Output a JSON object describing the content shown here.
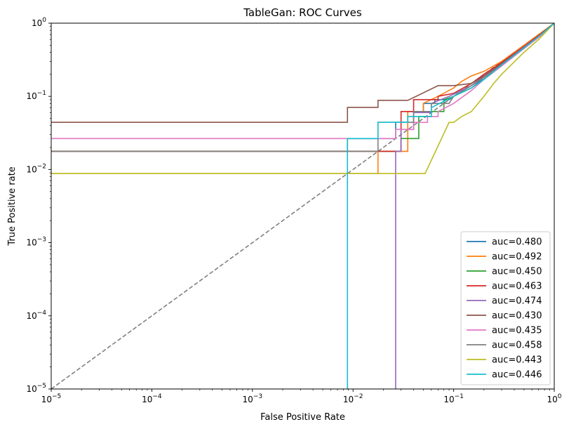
{
  "chart_data": {
    "type": "line",
    "title": "TableGan: ROC Curves",
    "xlabel": "False Positive Rate",
    "ylabel": "True Positive rate",
    "xscale": "log",
    "yscale": "log",
    "xlim": [
      1e-05,
      1
    ],
    "ylim": [
      1e-05,
      1
    ],
    "x_ticks": [
      {
        "value": 1e-05,
        "base": "10",
        "exp": "−5"
      },
      {
        "value": 0.0001,
        "base": "10",
        "exp": "−4"
      },
      {
        "value": 0.001,
        "base": "10",
        "exp": "−3"
      },
      {
        "value": 0.01,
        "base": "10",
        "exp": "−2"
      },
      {
        "value": 0.1,
        "base": "10",
        "exp": "−1"
      },
      {
        "value": 1,
        "base": "10",
        "exp": "0"
      }
    ],
    "y_ticks": [
      {
        "value": 1e-05,
        "base": "10",
        "exp": "−5"
      },
      {
        "value": 0.0001,
        "base": "10",
        "exp": "−4"
      },
      {
        "value": 0.001,
        "base": "10",
        "exp": "−3"
      },
      {
        "value": 0.01,
        "base": "10",
        "exp": "−2"
      },
      {
        "value": 0.1,
        "base": "10",
        "exp": "−1"
      },
      {
        "value": 1,
        "base": "10",
        "exp": "0"
      }
    ],
    "grid": false,
    "legend_position": "lower-right",
    "reference_line": {
      "style": "dashed",
      "color": "#808080",
      "points": [
        [
          1e-05,
          1e-05
        ],
        [
          1,
          1
        ]
      ]
    },
    "series": [
      {
        "name": "auc=0.480",
        "color": "#1f77b4",
        "points": [
          [
            1e-05,
            0.0177
          ],
          [
            0.0088,
            0.0177
          ],
          [
            0.0088,
            0.0265
          ],
          [
            0.0265,
            0.0265
          ],
          [
            0.0265,
            0.0442
          ],
          [
            0.035,
            0.0442
          ],
          [
            0.035,
            0.062
          ],
          [
            0.05,
            0.062
          ],
          [
            0.05,
            0.08
          ],
          [
            0.065,
            0.08
          ],
          [
            0.065,
            0.09
          ],
          [
            0.09,
            0.09
          ],
          [
            0.1,
            0.1
          ],
          [
            0.15,
            0.13
          ],
          [
            0.2,
            0.18
          ],
          [
            0.3,
            0.27
          ],
          [
            0.5,
            0.45
          ],
          [
            0.7,
            0.65
          ],
          [
            1,
            1
          ]
        ]
      },
      {
        "name": "auc=0.492",
        "color": "#ff7f0e",
        "points": [
          [
            1e-05,
            0.0088
          ],
          [
            0.0177,
            0.0088
          ],
          [
            0.0177,
            0.0177
          ],
          [
            0.035,
            0.0177
          ],
          [
            0.035,
            0.062
          ],
          [
            0.05,
            0.062
          ],
          [
            0.05,
            0.08
          ],
          [
            0.07,
            0.1
          ],
          [
            0.1,
            0.13
          ],
          [
            0.12,
            0.16
          ],
          [
            0.15,
            0.19
          ],
          [
            0.2,
            0.22
          ],
          [
            0.3,
            0.3
          ],
          [
            0.5,
            0.5
          ],
          [
            0.7,
            0.7
          ],
          [
            1,
            1
          ]
        ]
      },
      {
        "name": "auc=0.450",
        "color": "#2ca02c",
        "points": [
          [
            1e-05,
            0.0177
          ],
          [
            0.03,
            0.0177
          ],
          [
            0.03,
            0.0265
          ],
          [
            0.045,
            0.0265
          ],
          [
            0.045,
            0.053
          ],
          [
            0.06,
            0.053
          ],
          [
            0.06,
            0.062
          ],
          [
            0.08,
            0.062
          ],
          [
            0.08,
            0.09
          ],
          [
            0.1,
            0.1
          ],
          [
            0.15,
            0.14
          ],
          [
            0.2,
            0.19
          ],
          [
            0.3,
            0.28
          ],
          [
            0.5,
            0.47
          ],
          [
            0.7,
            0.67
          ],
          [
            1,
            1
          ]
        ]
      },
      {
        "name": "auc=0.463",
        "color": "#d62728",
        "points": [
          [
            1e-05,
            0.0177
          ],
          [
            0.03,
            0.0177
          ],
          [
            0.03,
            0.062
          ],
          [
            0.04,
            0.062
          ],
          [
            0.04,
            0.09
          ],
          [
            0.07,
            0.09
          ],
          [
            0.07,
            0.1
          ],
          [
            0.1,
            0.11
          ],
          [
            0.15,
            0.15
          ],
          [
            0.2,
            0.2
          ],
          [
            0.3,
            0.29
          ],
          [
            0.5,
            0.48
          ],
          [
            0.7,
            0.68
          ],
          [
            1,
            1
          ]
        ]
      },
      {
        "name": "auc=0.474",
        "color": "#9467bd",
        "points": [
          [
            0.0265,
            1e-05
          ],
          [
            0.0265,
            0.0177
          ],
          [
            0.03,
            0.0177
          ],
          [
            0.03,
            0.0353
          ],
          [
            0.04,
            0.0353
          ],
          [
            0.04,
            0.06
          ],
          [
            0.06,
            0.06
          ],
          [
            0.06,
            0.08
          ],
          [
            0.09,
            0.1
          ],
          [
            0.15,
            0.14
          ],
          [
            0.2,
            0.19
          ],
          [
            0.3,
            0.28
          ],
          [
            0.5,
            0.47
          ],
          [
            0.7,
            0.66
          ],
          [
            1,
            1
          ]
        ]
      },
      {
        "name": "auc=0.430",
        "color": "#8c564b",
        "points": [
          [
            1e-05,
            0.0442
          ],
          [
            0.0088,
            0.0442
          ],
          [
            0.0088,
            0.0707
          ],
          [
            0.0177,
            0.0707
          ],
          [
            0.0177,
            0.088
          ],
          [
            0.035,
            0.088
          ],
          [
            0.07,
            0.14
          ],
          [
            0.1,
            0.14
          ],
          [
            0.15,
            0.15
          ],
          [
            0.2,
            0.19
          ],
          [
            0.3,
            0.28
          ],
          [
            0.5,
            0.46
          ],
          [
            0.7,
            0.65
          ],
          [
            1,
            1
          ]
        ]
      },
      {
        "name": "auc=0.435",
        "color": "#e377c2",
        "points": [
          [
            1e-05,
            0.0265
          ],
          [
            0.0265,
            0.0265
          ],
          [
            0.0265,
            0.0353
          ],
          [
            0.04,
            0.0353
          ],
          [
            0.04,
            0.044
          ],
          [
            0.055,
            0.044
          ],
          [
            0.055,
            0.053
          ],
          [
            0.07,
            0.053
          ],
          [
            0.07,
            0.062
          ],
          [
            0.1,
            0.08
          ],
          [
            0.15,
            0.12
          ],
          [
            0.2,
            0.17
          ],
          [
            0.3,
            0.26
          ],
          [
            0.5,
            0.45
          ],
          [
            0.7,
            0.64
          ],
          [
            1,
            1
          ]
        ]
      },
      {
        "name": "auc=0.458",
        "color": "#7f7f7f",
        "points": [
          [
            1e-05,
            0.0177
          ],
          [
            0.0177,
            0.0177
          ],
          [
            0.0177,
            0.0442
          ],
          [
            0.04,
            0.0442
          ],
          [
            0.04,
            0.062
          ],
          [
            0.06,
            0.062
          ],
          [
            0.06,
            0.08
          ],
          [
            0.09,
            0.08
          ],
          [
            0.1,
            0.1
          ],
          [
            0.15,
            0.14
          ],
          [
            0.2,
            0.18
          ],
          [
            0.3,
            0.27
          ],
          [
            0.5,
            0.46
          ],
          [
            0.7,
            0.66
          ],
          [
            1,
            1
          ]
        ]
      },
      {
        "name": "auc=0.443",
        "color": "#bcbd22",
        "points": [
          [
            1e-05,
            0.0088
          ],
          [
            0.052,
            0.0088
          ],
          [
            0.09,
            0.044
          ],
          [
            0.1,
            0.044
          ],
          [
            0.12,
            0.053
          ],
          [
            0.15,
            0.062
          ],
          [
            0.2,
            0.1
          ],
          [
            0.25,
            0.15
          ],
          [
            0.3,
            0.2
          ],
          [
            0.5,
            0.4
          ],
          [
            0.7,
            0.6
          ],
          [
            1,
            1
          ]
        ]
      },
      {
        "name": "auc=0.446",
        "color": "#17becf",
        "points": [
          [
            0.0088,
            1e-05
          ],
          [
            0.0088,
            0.0265
          ],
          [
            0.0177,
            0.0265
          ],
          [
            0.0177,
            0.0442
          ],
          [
            0.035,
            0.0442
          ],
          [
            0.035,
            0.053
          ],
          [
            0.06,
            0.053
          ],
          [
            0.06,
            0.07
          ],
          [
            0.1,
            0.1
          ],
          [
            0.15,
            0.13
          ],
          [
            0.2,
            0.17
          ],
          [
            0.3,
            0.27
          ],
          [
            0.5,
            0.46
          ],
          [
            0.7,
            0.66
          ],
          [
            1,
            1
          ]
        ]
      }
    ]
  }
}
